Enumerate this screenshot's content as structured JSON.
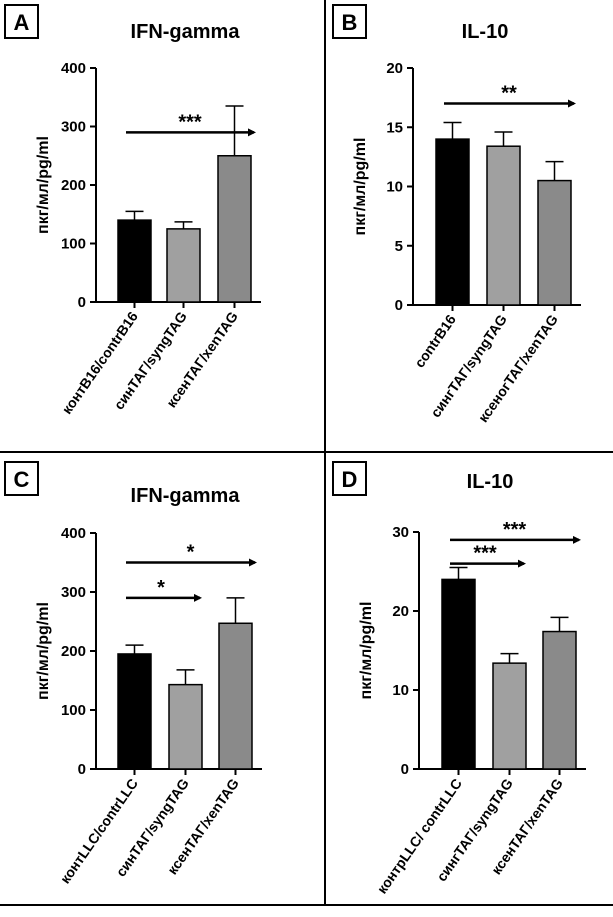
{
  "colors": {
    "control": "#000000",
    "syng": "#a0a0a0",
    "xen": "#8a8a8a",
    "line": "#000000"
  },
  "chart_data": [
    {
      "panel": "A",
      "type": "bar",
      "title": "IFN-gamma",
      "ylabel": "пкг/мл/pg/ml",
      "ylim": [
        0,
        400
      ],
      "yticks": [
        0,
        100,
        200,
        300,
        400
      ],
      "categories": [
        "контB16/contrB16",
        "синТАГ/syngTAG",
        "ксенТАГ/xenTAG"
      ],
      "values": [
        140,
        125,
        250
      ],
      "errors": [
        15,
        12,
        85
      ],
      "annotations": [
        {
          "label": "***",
          "from": 0,
          "to": 2,
          "at": 290
        }
      ]
    },
    {
      "panel": "B",
      "type": "bar",
      "title": "IL-10",
      "ylabel": "пкг/мл/pg/ml",
      "ylim": [
        0,
        20
      ],
      "yticks": [
        0,
        5,
        10,
        15,
        20
      ],
      "categories": [
        "contrB16",
        "сингТАГ/syngTAG",
        "ксеногТАГ/xenTAG"
      ],
      "values": [
        14,
        13.4,
        10.5
      ],
      "errors": [
        1.4,
        1.2,
        1.6
      ],
      "annotations": [
        {
          "label": "**",
          "from": 0,
          "to": 2,
          "at": 17
        }
      ]
    },
    {
      "panel": "C",
      "type": "bar",
      "title": "IFN-gamma",
      "ylabel": "пкг/мл/pg/ml",
      "ylim": [
        0,
        400
      ],
      "yticks": [
        0,
        100,
        200,
        300,
        400
      ],
      "categories": [
        "контLLC/contrLLC",
        "синТАГ/syngTAG",
        "ксенТАГ/xenTAG"
      ],
      "values": [
        195,
        143,
        247
      ],
      "errors": [
        15,
        25,
        43
      ],
      "annotations": [
        {
          "label": "*",
          "from": 0,
          "to": 2,
          "at": 350
        },
        {
          "label": "*",
          "from": 0,
          "to": 1,
          "at": 290
        }
      ]
    },
    {
      "panel": "D",
      "type": "bar",
      "title": "IL-10",
      "ylabel": "пкг/мл/pg/ml",
      "ylim": [
        0,
        30
      ],
      "yticks": [
        0,
        10,
        20,
        30
      ],
      "categories": [
        "контрLLC/ contrLLC",
        "сингТАГ/syngTAG",
        "ксенТАГ/xenTAG"
      ],
      "values": [
        24,
        13.4,
        17.4
      ],
      "errors": [
        1.5,
        1.2,
        1.8
      ],
      "annotations": [
        {
          "label": "***",
          "from": 0,
          "to": 2,
          "at": 29
        },
        {
          "label": "***",
          "from": 0,
          "to": 1,
          "at": 26
        }
      ]
    }
  ]
}
